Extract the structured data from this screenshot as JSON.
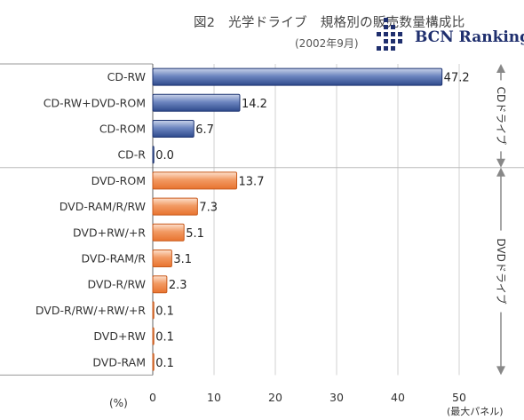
{
  "header": {
    "title": "図2　光学ドライブ　規格別の販売数量構成比",
    "subtitle": "(2002年9月)",
    "logo_text": "BCN Ranking"
  },
  "x_unit": "(%)",
  "panel_note": "(最大パネル)",
  "groups": [
    {
      "label": "CDドライブ",
      "start": 0,
      "end": 3
    },
    {
      "label": "DVDドライブ",
      "start": 4,
      "end": 11
    }
  ],
  "colors": {
    "cd": "#2e4a8c",
    "dvd": "#e8732f",
    "grid": "#d0d0d0",
    "axis": "#999999"
  },
  "chart_data": {
    "type": "bar",
    "orientation": "horizontal",
    "categories": [
      "CD-RW",
      "CD-RW+DVD-ROM",
      "CD-ROM",
      "CD-R",
      "DVD-ROM",
      "DVD-RAM/R/RW",
      "DVD+RW/+R",
      "DVD-RAM/R",
      "DVD-R/RW",
      "DVD-R/RW/+RW/+R",
      "DVD+RW",
      "DVD-RAM"
    ],
    "values": [
      47.2,
      14.2,
      6.7,
      0.0,
      13.7,
      7.3,
      5.1,
      3.1,
      2.3,
      0.1,
      0.1,
      0.1
    ],
    "value_labels": [
      "47.2",
      "14.2",
      "6.7",
      "0.0",
      "13.7",
      "7.3",
      "5.1",
      "3.1",
      "2.3",
      "0.1",
      "0.1",
      "0.1"
    ],
    "xlim": [
      0,
      50
    ],
    "xticks": [
      0,
      10,
      20,
      30,
      40,
      50
    ],
    "xtick_labels": [
      "0",
      "10",
      "20",
      "30",
      "40",
      "50"
    ],
    "grid": true
  }
}
